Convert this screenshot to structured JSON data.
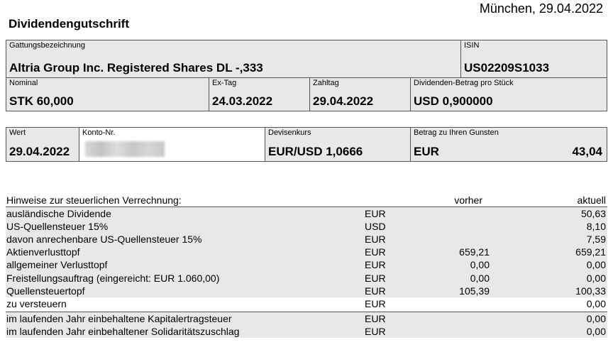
{
  "header": {
    "place_date": "München, 29.04.2022",
    "title": "Dividendengutschrift"
  },
  "security": {
    "gattung_label": "Gattungsbezeichnung",
    "gattung_value": "Altria Group Inc. Registered Shares DL -,333",
    "isin_label": "ISIN",
    "isin_value": "US02209S1033",
    "nominal_label": "Nominal",
    "nominal_value": "STK 60,000",
    "extag_label": "Ex-Tag",
    "extag_value": "24.03.2022",
    "zahltag_label": "Zahltag",
    "zahltag_value": "29.04.2022",
    "divbetrag_label": "Dividenden-Betrag pro Stück",
    "divbetrag_value": "USD 0,900000"
  },
  "payment": {
    "wert_label": "Wert",
    "wert_value": "29.04.2022",
    "konto_label": "Konto-Nr.",
    "devisen_label": "Devisenkurs",
    "devisen_value": "EUR/USD 1,0666",
    "betrag_label": "Betrag zu Ihren Gunsten",
    "betrag_currency": "EUR",
    "betrag_value": "43,04"
  },
  "tax": {
    "heading": "Hinweise zur steuerlichen Verrechnung:",
    "col_prev": "vorher",
    "col_curr": "aktuell",
    "rows": [
      {
        "label": "ausländische Dividende",
        "currency": "EUR",
        "prev": "",
        "curr": "50,63"
      },
      {
        "label": "US-Quellensteuer 15%",
        "currency": "USD",
        "prev": "",
        "curr": "8,10"
      },
      {
        "label": "davon anrechenbare US-Quellensteuer 15%",
        "currency": "EUR",
        "prev": "",
        "curr": "7,59"
      },
      {
        "label": "Aktienverlusttopf",
        "currency": "EUR",
        "prev": "659,21",
        "curr": "659,21"
      },
      {
        "label": "allgemeiner Verlusttopf",
        "currency": "EUR",
        "prev": "0,00",
        "curr": "0,00"
      },
      {
        "label": "Freistellungsauftrag (eingereicht: EUR 1.060,00)",
        "currency": "EUR",
        "prev": "0,00",
        "curr": "0,00"
      },
      {
        "label": "Quellensteuertopf",
        "currency": "EUR",
        "prev": "105,39",
        "curr": "100,33"
      },
      {
        "label": "zu versteuern",
        "currency": "EUR",
        "prev": "",
        "curr": "0,00"
      },
      {
        "label": "im laufenden Jahr einbehaltene Kapitalertragsteuer",
        "currency": "EUR",
        "prev": "",
        "curr": "0,00"
      },
      {
        "label": "im laufenden Jahr einbehaltener Solidaritätszuschlag",
        "currency": "EUR",
        "prev": "",
        "curr": "0,00"
      }
    ]
  }
}
